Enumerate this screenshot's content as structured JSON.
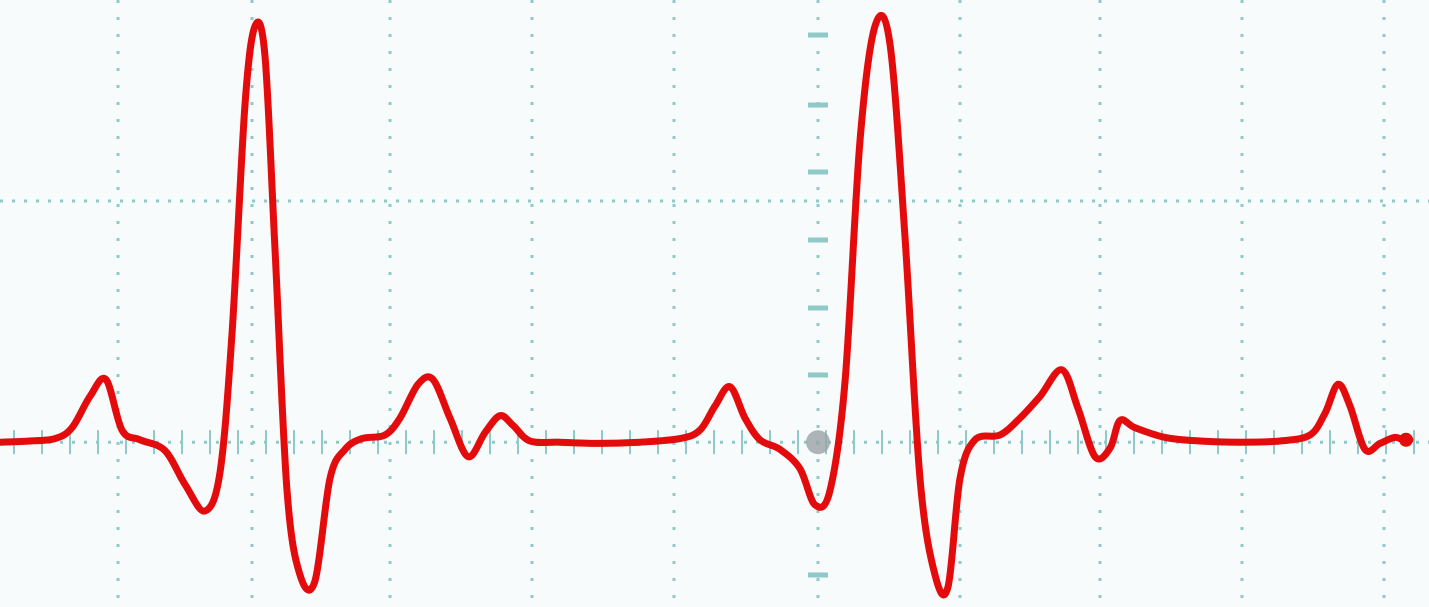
{
  "chart_data": {
    "type": "line",
    "title": "",
    "xlabel": "",
    "ylabel": "",
    "grid": true,
    "legend": "none",
    "colors": {
      "background": "#f8fbfc",
      "grid": "#8fc9c8",
      "center_marker": "#9aa3a6",
      "trace": "#e30b0b"
    },
    "xlim": [
      0,
      1429
    ],
    "ylim": [
      -1.3,
      3.6
    ],
    "series": [
      {
        "x": [
          0,
          30,
          55,
          72,
          90,
          106,
          122,
          140,
          165,
          185,
          205,
          220,
          232,
          245,
          255,
          265,
          275,
          287,
          300,
          315,
          330,
          345,
          362,
          385,
          400,
          418,
          433,
          450,
          468,
          485,
          500,
          513,
          530,
          560,
          600,
          640,
          680,
          700,
          715,
          730,
          745,
          760,
          780,
          800,
          815,
          830,
          845,
          860,
          875,
          890,
          905,
          920,
          935,
          948,
          960,
          975,
          1000,
          1020,
          1040,
          1062,
          1078,
          1095,
          1110,
          1120,
          1135,
          1165,
          1200,
          1240,
          1280,
          1310,
          1325,
          1338,
          1350,
          1365,
          1380,
          1395,
          1405,
          1410
        ],
        "y": [
          0,
          0.01,
          0.03,
          0.12,
          0.38,
          0.52,
          0.1,
          0.02,
          -0.07,
          -0.35,
          -0.57,
          -0.25,
          0.9,
          2.8,
          3.45,
          3.2,
          1.6,
          -0.4,
          -1.1,
          -1.15,
          -0.3,
          -0.06,
          0.03,
          0.06,
          0.2,
          0.48,
          0.52,
          0.2,
          -0.12,
          0.08,
          0.22,
          0.14,
          0.01,
          0,
          -0.01,
          0,
          0.03,
          0.1,
          0.3,
          0.46,
          0.2,
          0.02,
          -0.06,
          -0.22,
          -0.52,
          -0.4,
          0.5,
          2.5,
          3.45,
          3.3,
          1.7,
          -0.3,
          -1.1,
          -1.2,
          -0.3,
          0.02,
          0.06,
          0.2,
          0.38,
          0.6,
          0.28,
          -0.12,
          -0.05,
          0.18,
          0.12,
          0.04,
          0.01,
          0,
          0.01,
          0.06,
          0.24,
          0.48,
          0.3,
          -0.06,
          -0.01,
          0.04,
          0.01,
          0.02
        ]
      }
    ]
  }
}
